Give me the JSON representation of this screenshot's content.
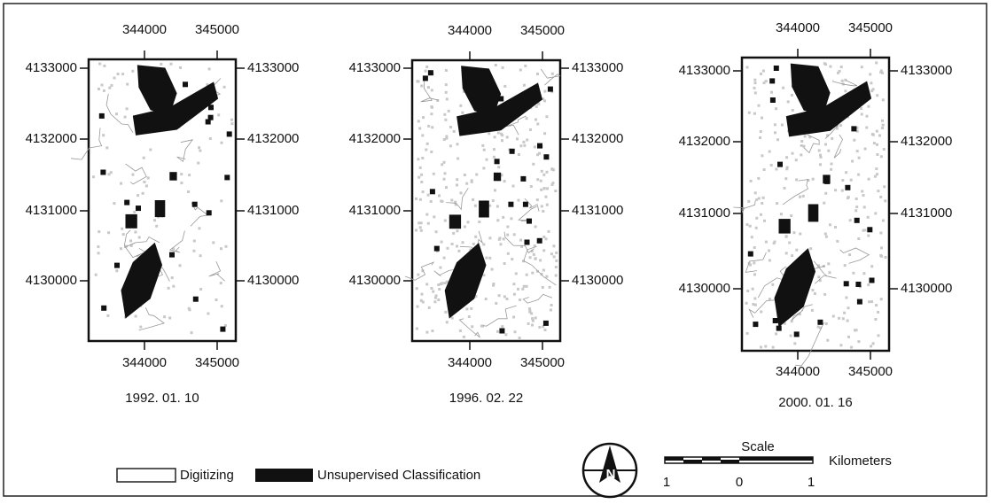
{
  "panels": [
    {
      "top_ticks": [
        344000,
        345000
      ],
      "bottom_ticks": [
        344000,
        345000
      ],
      "left_ticks": [
        4133000,
        4132000,
        4131000,
        4130000
      ],
      "right_ticks": [
        4133000,
        4132000,
        4131000,
        4130000
      ],
      "date": "1992. 01. 10"
    },
    {
      "top_ticks": [
        344000,
        345000
      ],
      "bottom_ticks": [
        344000,
        345000
      ],
      "left_ticks": [
        4133000,
        4132000,
        4131000,
        4130000
      ],
      "right_ticks": [
        4133000,
        4132000,
        4131000,
        4130000
      ],
      "date": "1996. 02. 22"
    },
    {
      "top_ticks": [
        344000,
        345000
      ],
      "bottom_ticks": [
        344000,
        345000
      ],
      "left_ticks": [
        4133000,
        4132000,
        4131000,
        4130000
      ],
      "right_ticks": [
        4133000,
        4132000,
        4131000,
        4130000
      ],
      "date": "2000. 01. 16"
    }
  ],
  "legend": {
    "items": [
      "Digitizing",
      "Unsupervised Classification"
    ]
  },
  "scale": {
    "title": "Scale",
    "unit": "Kilometers",
    "labels": [
      "1",
      "0",
      "1"
    ]
  }
}
